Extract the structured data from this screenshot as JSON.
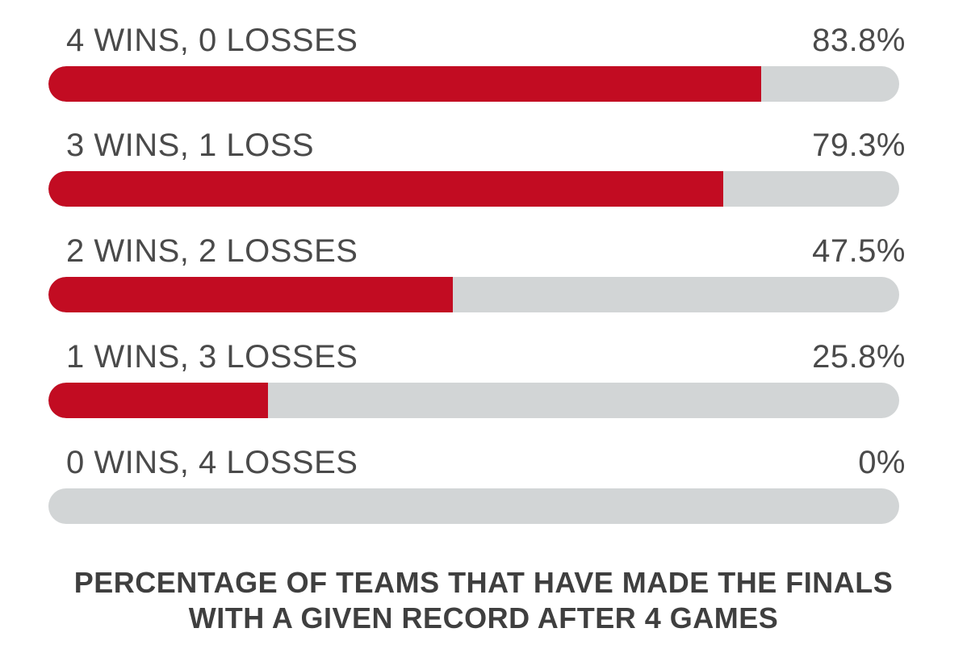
{
  "colors": {
    "bar_fill": "#c20c22",
    "bar_track": "#d2d5d6",
    "text": "#4a4a4a",
    "title_text": "#3f3f3f"
  },
  "chart_data": {
    "type": "bar",
    "orientation": "horizontal",
    "title_lines": [
      "PERCENTAGE OF TEAMS THAT HAVE MADE THE FINALS",
      "WITH A GIVEN RECORD AFTER 4 GAMES"
    ],
    "categories": [
      "4 WINS, 0 LOSSES",
      "3 WINS, 1 LOSS",
      "2 WINS, 2 LOSSES",
      "1 WINS, 3 LOSSES",
      "0 WINS, 4 LOSSES"
    ],
    "values": [
      83.8,
      79.3,
      47.5,
      25.8,
      0
    ],
    "value_labels": [
      "83.8%",
      "79.3%",
      "47.5%",
      "25.8%",
      "0%"
    ],
    "xlim": [
      0,
      100
    ],
    "grid": false,
    "legend": "none"
  }
}
